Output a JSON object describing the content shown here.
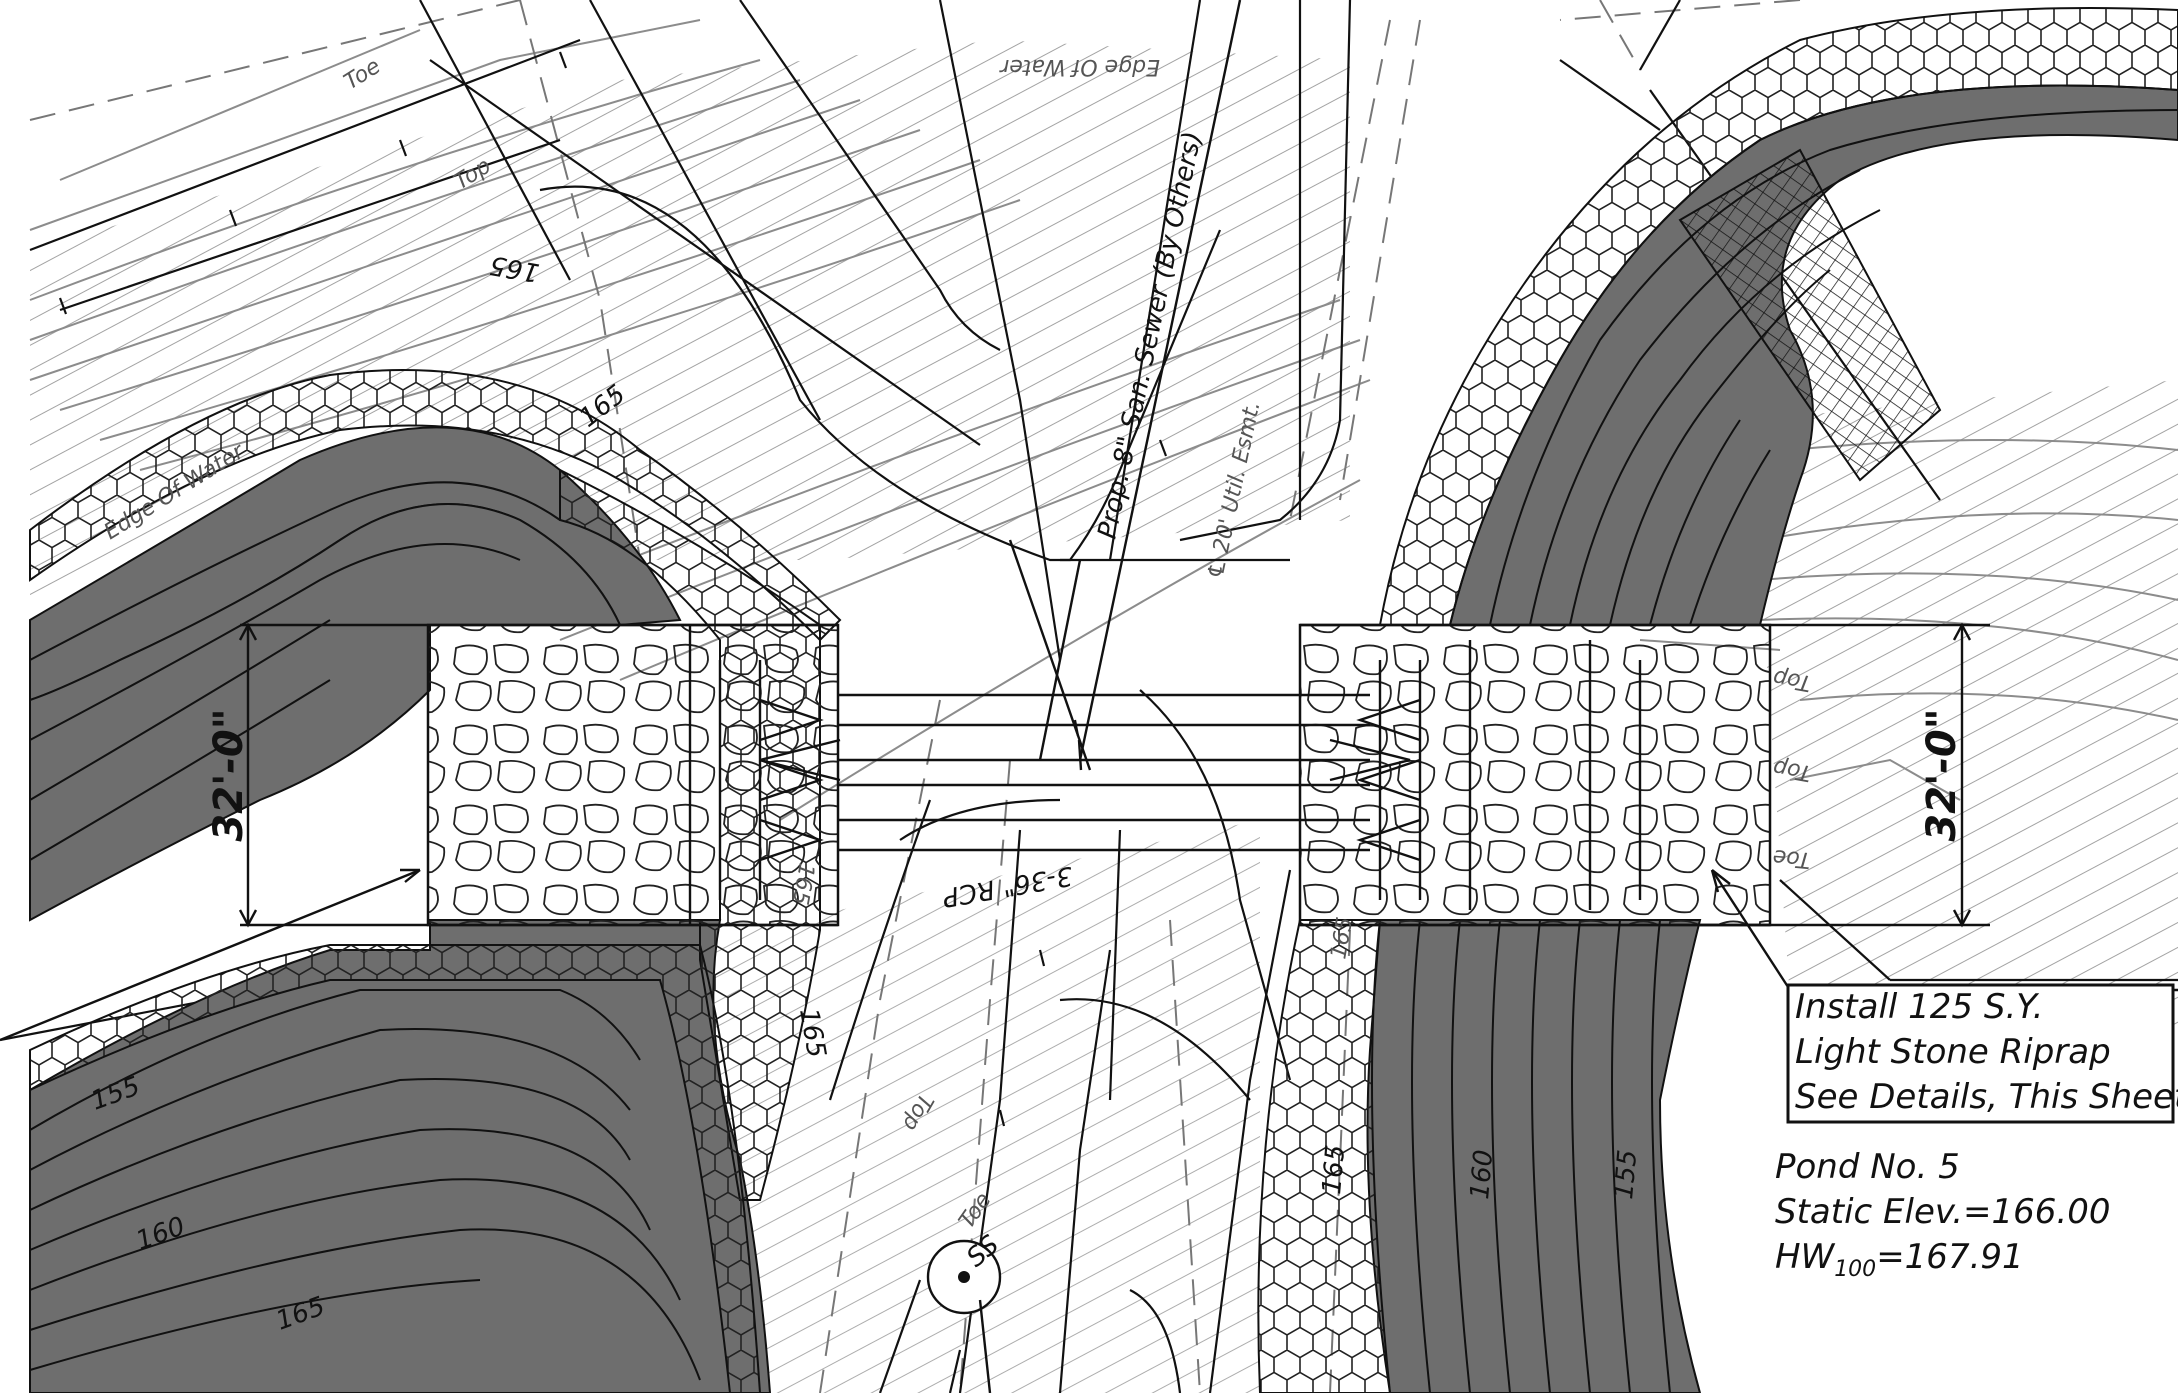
{
  "labels": {
    "toe": "Toe",
    "top": "Top",
    "edge_of_water": "Edge Of Water",
    "sewer": "Prop. 8\" San. Sewer (By Others)",
    "easement": "℄ 20' Util. Esmt.",
    "pipe": "3-36\" RCP",
    "manhole": "SS",
    "dim_left": "32'-0\"",
    "dim_right": "32'-0\""
  },
  "contours": {
    "c155": "155",
    "c160": "160",
    "c165": "165"
  },
  "callout": {
    "line1": "Install 125 S.Y.",
    "line2": "Light Stone Riprap",
    "line3": "See Details, This Sheet."
  },
  "pond": {
    "name": "Pond No. 5",
    "static": "Static Elev.=166.00",
    "hw_prefix": "HW",
    "hw_sub": "100",
    "hw_value": "=167.91"
  }
}
